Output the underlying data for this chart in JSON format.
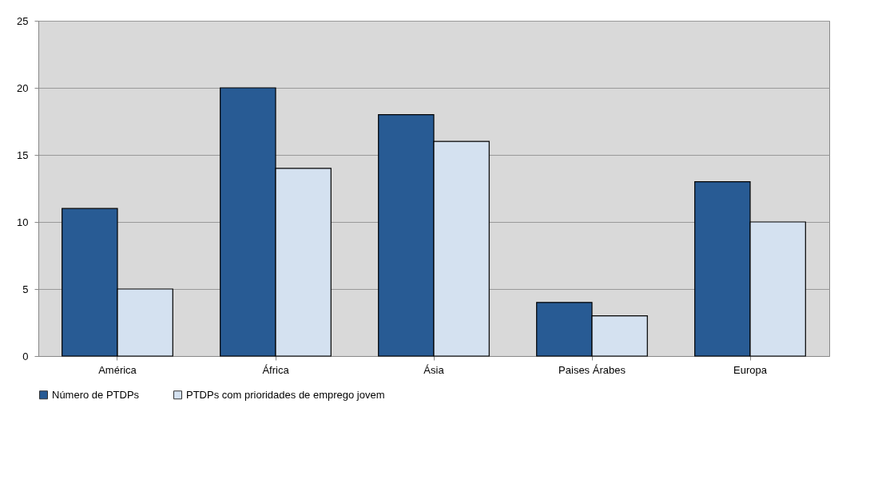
{
  "chart_data": {
    "type": "bar",
    "categories": [
      "América",
      "África",
      "Ásia",
      "Paises Árabes",
      "Europa"
    ],
    "series": [
      {
        "name": "Número de PTDPs",
        "color": "#285b94",
        "values": [
          11,
          20,
          18,
          4,
          13
        ]
      },
      {
        "name": "PTDPs com prioridades de emprego jovem",
        "color": "#d4e1f0",
        "values": [
          5,
          14,
          16,
          3,
          10
        ]
      }
    ],
    "ylim": [
      0,
      25
    ],
    "yticks": [
      0,
      5,
      10,
      15,
      20,
      25
    ],
    "grid": "y",
    "legend": "bottom"
  }
}
